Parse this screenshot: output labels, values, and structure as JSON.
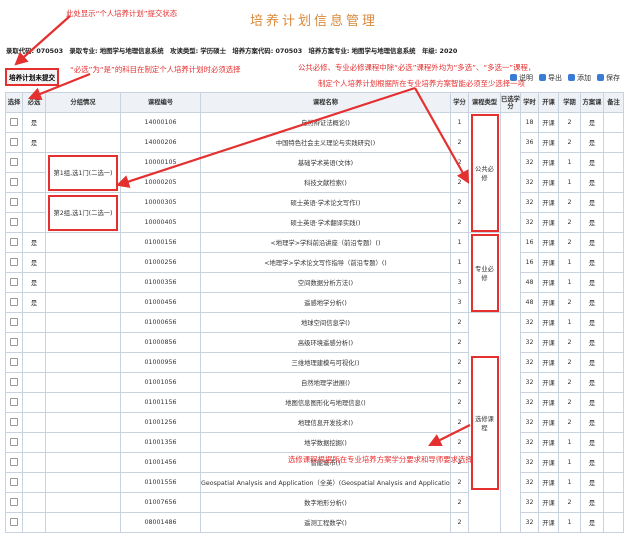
{
  "header": {
    "title": "培养计划信息管理",
    "info": "录取代码: 070503　录取专业: 地图学与地理信息系统　攻读类型: 学历硕士　培养方案代码: 070503　培养方案专业: 地图学与地理信息系统　年级: 2020",
    "status_button": "培养计划未提交",
    "toolbar": [
      "说明",
      "导出",
      "添加",
      "保存"
    ]
  },
  "annotations": {
    "status": "此处显示“个人培养计划”提交状态",
    "required": "“必选”为“是”的科目在制定个人培养计划时必须选择",
    "groups": [
      "公共必修、专业必修课程中除“必选”课程外均为“多选”、“多选一”课程，",
      "制定个人培养计划根据所在专业培养方案智能必须至少选择一项"
    ],
    "electives": "选修课程根据所在专业培养方案学分要求和导师要求选择"
  },
  "table": {
    "headers": [
      "选择",
      "必选",
      "分组情况",
      "课程编号",
      "课程名称",
      "学分",
      "课程类型",
      "已选学分",
      "学时",
      "开课",
      "学期",
      "方案课",
      "备注"
    ],
    "sections": [
      {
        "type": "公共必修",
        "rows": [
          {
            "required": "是",
            "code": "14000106",
            "name": "自然辩证法概论()",
            "credits": 1,
            "hours": 18,
            "open": "开课",
            "term": 2,
            "plan": "是"
          },
          {
            "required": "是",
            "code": "14000206",
            "name": "中国特色社会主义理论与实践研究()",
            "credits": 2,
            "hours": 36,
            "open": "开课",
            "term": 2,
            "plan": "是"
          },
          {
            "group": "第1组,选1门(二选一)",
            "code": "10000105",
            "name": "基础学术英语(文体)",
            "credits": 2,
            "hours": 32,
            "open": "开课",
            "term": 1,
            "plan": "是"
          },
          {
            "code": "10000205",
            "name": "科技文献检索()",
            "credits": 2,
            "hours": 32,
            "open": "开课",
            "term": 1,
            "plan": "是"
          },
          {
            "group": "第2组,选1门(二选一)",
            "code": "10000305",
            "name": "硕士英语·学术论文写作()",
            "credits": 2,
            "hours": 32,
            "open": "开课",
            "term": 2,
            "plan": "是"
          },
          {
            "code": "10000405",
            "name": "硕士英语·学术翻译实践()",
            "credits": 2,
            "hours": 32,
            "open": "开课",
            "term": 2,
            "plan": "是"
          }
        ]
      },
      {
        "type": "专业必修",
        "rows": [
          {
            "required": "是",
            "code": "01000156",
            "name": "<地理学>学科前沿讲座（前沿专题）()",
            "credits": 1,
            "hours": 16,
            "open": "开课",
            "term": 2,
            "plan": "是"
          },
          {
            "required": "是",
            "code": "01000256",
            "name": "<地理学>学术论文写作指导（前沿专题）()",
            "credits": 1,
            "hours": 16,
            "open": "开课",
            "term": 1,
            "plan": "是"
          },
          {
            "required": "是",
            "code": "01000356",
            "name": "空间数据分析方法()",
            "credits": 3,
            "hours": 48,
            "open": "开课",
            "term": 1,
            "plan": "是"
          },
          {
            "required": "是",
            "code": "01000456",
            "name": "遥感地学分析()",
            "credits": 3,
            "hours": 48,
            "open": "开课",
            "term": 2,
            "plan": "是"
          }
        ]
      },
      {
        "type": "选修课程",
        "rows": [
          {
            "code": "01000656",
            "name": "地球空间信息学()",
            "credits": 2,
            "hours": 32,
            "open": "开课",
            "term": 1,
            "plan": "是"
          },
          {
            "code": "01000856",
            "name": "高级环境遥感分析()",
            "credits": 2,
            "hours": 32,
            "open": "开课",
            "term": 2,
            "plan": "是"
          },
          {
            "code": "01000956",
            "name": "三维地理建模与可视化()",
            "credits": 2,
            "hours": 32,
            "open": "开课",
            "term": 2,
            "plan": "是"
          },
          {
            "code": "01001056",
            "name": "自然地理学进展()",
            "credits": 2,
            "hours": 32,
            "open": "开课",
            "term": 2,
            "plan": "是"
          },
          {
            "code": "01001156",
            "name": "地图信息图形化与地理信息()",
            "credits": 2,
            "hours": 32,
            "open": "开课",
            "term": 2,
            "plan": "是"
          },
          {
            "code": "01001256",
            "name": "地理信息开发技术()",
            "credits": 2,
            "hours": 32,
            "open": "开课",
            "term": 2,
            "plan": "是"
          },
          {
            "code": "01001356",
            "name": "地学数据挖掘()",
            "credits": 2,
            "hours": 32,
            "open": "开课",
            "term": 1,
            "plan": "是"
          },
          {
            "code": "01001456",
            "name": "智能城市()",
            "credits": 2,
            "hours": 32,
            "open": "开课",
            "term": 1,
            "plan": "是"
          },
          {
            "code": "01001556",
            "name": "Geospatial Analysis and Application（全英）(Geospatial Analysis and Application)",
            "credits": 2,
            "hours": 32,
            "open": "开课",
            "term": 1,
            "plan": "是"
          },
          {
            "code": "01007656",
            "name": "数字地形分析()",
            "credits": 2,
            "hours": 32,
            "open": "开课",
            "term": 2,
            "plan": "是"
          },
          {
            "code": "08001486",
            "name": "遥测工程数学()",
            "credits": 2,
            "hours": 32,
            "open": "开课",
            "term": 1,
            "plan": "是"
          }
        ]
      }
    ]
  }
}
